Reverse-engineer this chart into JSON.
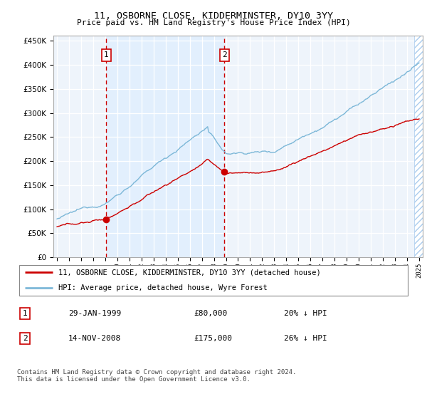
{
  "title": "11, OSBORNE CLOSE, KIDDERMINSTER, DY10 3YY",
  "subtitle": "Price paid vs. HM Land Registry's House Price Index (HPI)",
  "hpi_color": "#7db8d8",
  "price_color": "#cc0000",
  "vline_color": "#cc0000",
  "shade_color": "#ddeeff",
  "plot_bg": "#eef4fb",
  "ylim": [
    0,
    460000
  ],
  "yticks": [
    0,
    50000,
    100000,
    150000,
    200000,
    250000,
    300000,
    350000,
    400000,
    450000
  ],
  "sale1_year": 1999.08,
  "sale1_price": 80000,
  "sale2_year": 2008.87,
  "sale2_price": 175000,
  "legend_price_label": "11, OSBORNE CLOSE, KIDDERMINSTER, DY10 3YY (detached house)",
  "legend_hpi_label": "HPI: Average price, detached house, Wyre Forest",
  "note1_num": "1",
  "note1_date": "29-JAN-1999",
  "note1_price": "£80,000",
  "note1_hpi": "20% ↓ HPI",
  "note2_num": "2",
  "note2_date": "14-NOV-2008",
  "note2_price": "£175,000",
  "note2_hpi": "26% ↓ HPI",
  "footer": "Contains HM Land Registry data © Crown copyright and database right 2024.\nThis data is licensed under the Open Government Licence v3.0."
}
